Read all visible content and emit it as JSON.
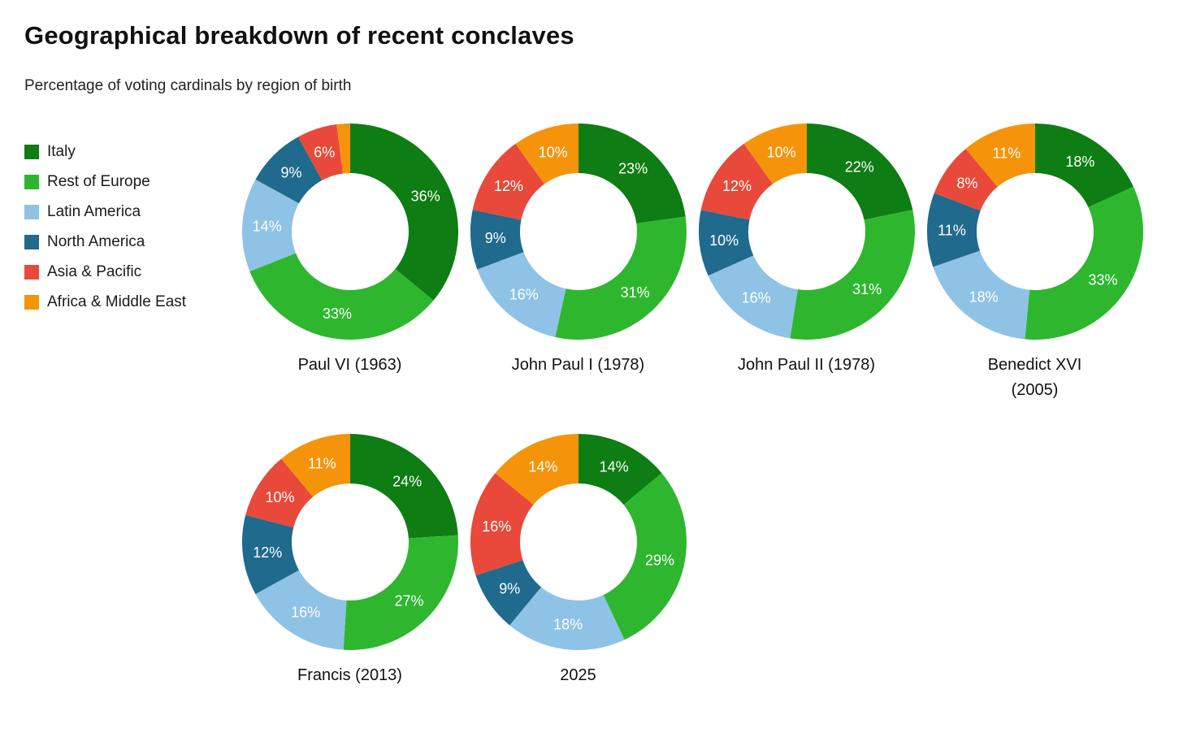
{
  "chart_data": {
    "type": "pie",
    "variant": "donut",
    "title": "Geographical breakdown of recent conclaves",
    "subtitle": "Percentage of voting cardinals by region of birth",
    "legend_position": "left",
    "label_unit": "%",
    "min_label_value": 4,
    "categories": [
      "Italy",
      "Rest of Europe",
      "Latin America",
      "North America",
      "Asia & Pacific",
      "Africa & Middle East"
    ],
    "colors": [
      "#0e7d13",
      "#2eb72e",
      "#8ec3e6",
      "#1f6a8d",
      "#e8493a",
      "#f5940a"
    ],
    "charts": [
      {
        "label": "Paul VI (1963)",
        "label_lines": [
          "Paul VI (1963)"
        ],
        "values": [
          36,
          33,
          14,
          9,
          6,
          2
        ]
      },
      {
        "label": "John Paul I (1978)",
        "label_lines": [
          "John Paul I (1978)"
        ],
        "values": [
          23,
          31,
          16,
          9,
          12,
          10
        ]
      },
      {
        "label": "John Paul II (1978)",
        "label_lines": [
          "John Paul II (1978)"
        ],
        "values": [
          22,
          31,
          16,
          10,
          12,
          10
        ]
      },
      {
        "label": "Benedict XVI (2005)",
        "label_lines": [
          "Benedict XVI",
          "(2005)"
        ],
        "values": [
          18,
          33,
          18,
          11,
          8,
          11
        ]
      },
      {
        "label": "Francis (2013)",
        "label_lines": [
          "Francis (2013)"
        ],
        "values": [
          24,
          27,
          16,
          12,
          10,
          11
        ]
      },
      {
        "label": "2025",
        "label_lines": [
          "2025"
        ],
        "values": [
          14,
          29,
          18,
          9,
          16,
          14
        ]
      }
    ]
  }
}
